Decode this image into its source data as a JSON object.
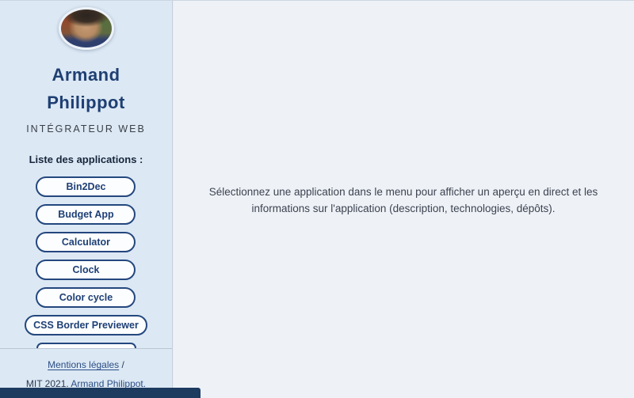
{
  "sidebar": {
    "name_line1": "Armand",
    "name_line2": "Philippot",
    "role": "INTÉGRATEUR WEB",
    "apps_label": "Liste des applications :",
    "apps": [
      "Bin2Dec",
      "Budget App",
      "Calculator",
      "Clock",
      "Color cycle",
      "CSS Border Previewer"
    ],
    "footer": {
      "legal_link": "Mentions légales",
      "legal_suffix": "/",
      "license_text": "MIT 2021.",
      "author_link": "Armand Philippot."
    }
  },
  "main": {
    "empty_message": "Sélectionnez une application dans le menu pour afficher un aperçu en direct et les informations sur l'application (description, technologies, dépôts)."
  },
  "colors": {
    "accent_navy": "#24477e",
    "sidebar_bg": "#dce8f4",
    "main_bg": "#eef2f7",
    "heading": "#1e3f72",
    "body_text": "#3c4250",
    "bottom_bar": "#1d3a5f"
  }
}
